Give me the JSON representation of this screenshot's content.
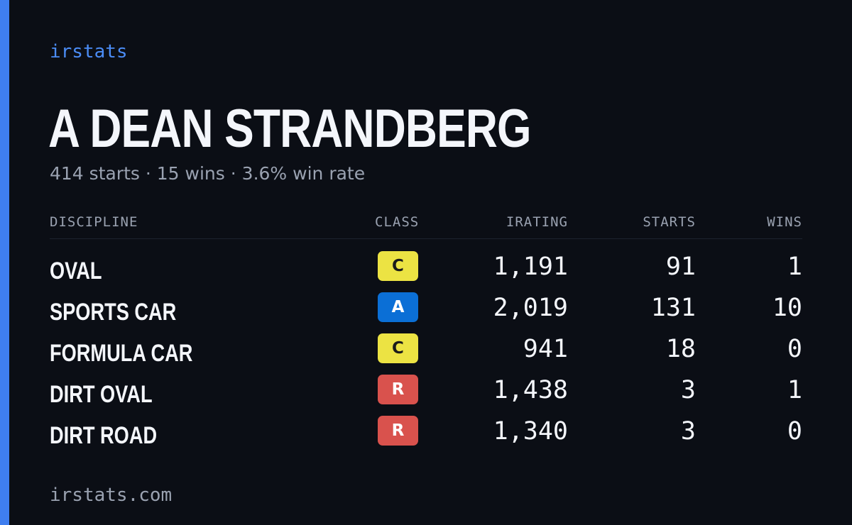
{
  "brand": "irstats",
  "driver": {
    "name": "A DEAN STRANDBERG",
    "summary": {
      "starts": "414 starts",
      "wins": "15 wins",
      "win_rate": "3.6% win rate",
      "separator": "·"
    }
  },
  "table": {
    "headers": {
      "discipline": "DISCIPLINE",
      "class": "CLASS",
      "irating": "IRATING",
      "starts": "STARTS",
      "wins": "WINS"
    },
    "rows": [
      {
        "discipline": "OVAL",
        "class": "C",
        "irating": "1,191",
        "starts": "91",
        "wins": "1"
      },
      {
        "discipline": "SPORTS CAR",
        "class": "A",
        "irating": "2,019",
        "starts": "131",
        "wins": "10"
      },
      {
        "discipline": "FORMULA CAR",
        "class": "C",
        "irating": "941",
        "starts": "18",
        "wins": "0"
      },
      {
        "discipline": "DIRT OVAL",
        "class": "R",
        "irating": "1,438",
        "starts": "3",
        "wins": "1"
      },
      {
        "discipline": "DIRT ROAD",
        "class": "R",
        "irating": "1,340",
        "starts": "3",
        "wins": "0"
      }
    ]
  },
  "class_colors": {
    "A": {
      "bg": "#0b6fd6",
      "fg": "#ffffff"
    },
    "C": {
      "bg": "#ece343",
      "fg": "#1b1b1b"
    },
    "R": {
      "bg": "#d9524d",
      "fg": "#ffffff"
    }
  },
  "colors": {
    "accent": "#3f7ef0",
    "background": "#0b0e15",
    "text_primary": "#f4f6fb",
    "text_muted": "#9aa2b1"
  },
  "footer": "irstats.com"
}
